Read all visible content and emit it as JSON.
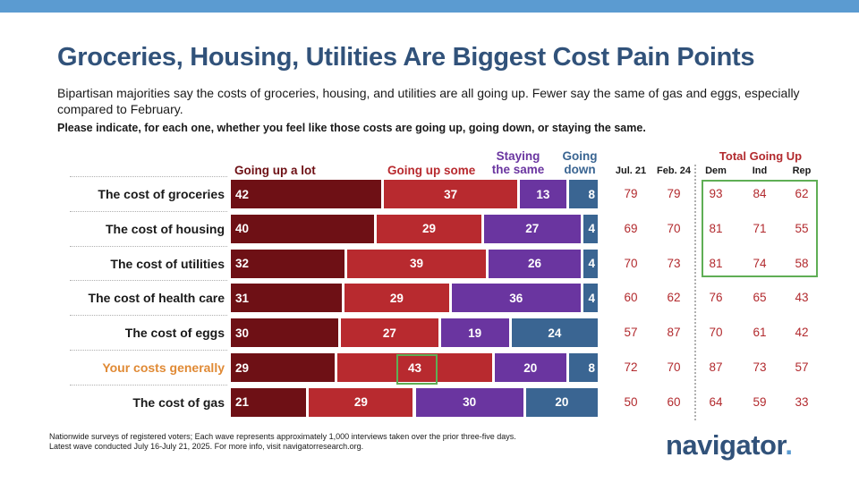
{
  "title": "Groceries, Housing, Utilities Are Biggest Cost Pain Points",
  "subtitle": "Bipartisan majorities say the costs of groceries, housing, and utilities are all going up. Fewer say the same of gas and eggs, especially compared to February.",
  "question": "Please indicate, for each one, whether you feel like those costs are going up, going down, or staying the same.",
  "headers": {
    "going_up_a_lot": "Going up a lot",
    "going_up_some": "Going up some",
    "staying_line1": "Staying",
    "staying_line2": "the same",
    "going_line1": "Going",
    "going_line2": "down",
    "total_going_up": "Total Going Up",
    "jul21": "Jul. 21",
    "feb24": "Feb. 24",
    "dem": "Dem",
    "ind": "Ind",
    "rep": "Rep"
  },
  "colors": {
    "going_up_a_lot": "#6e1015",
    "going_up_some": "#b82a2f",
    "staying_the_same": "#6a35a0",
    "going_down": "#3a6592",
    "highlight_label": "#e08a35",
    "title": "#31527a",
    "accent_bar": "#5b9bd1",
    "highlight_box": "#5fae55"
  },
  "chart_data": {
    "type": "bar",
    "orientation": "horizontal",
    "stacked": true,
    "title": "Groceries, Housing, Utilities Are Biggest Cost Pain Points",
    "categories": [
      "The cost of groceries",
      "The cost of housing",
      "The cost of utilities",
      "The cost of health care",
      "The cost of eggs",
      "Your costs generally",
      "The cost of gas"
    ],
    "highlighted_category": "Your costs generally",
    "series": [
      {
        "name": "Going up a lot",
        "values": [
          42,
          40,
          32,
          31,
          30,
          29,
          21
        ]
      },
      {
        "name": "Going up some",
        "values": [
          37,
          29,
          39,
          29,
          27,
          43,
          29
        ]
      },
      {
        "name": "Staying the same",
        "values": [
          13,
          27,
          26,
          36,
          19,
          20,
          30
        ]
      },
      {
        "name": "Going down",
        "values": [
          8,
          4,
          4,
          4,
          24,
          8,
          20
        ]
      }
    ],
    "total_going_up": {
      "columns": [
        "Jul. 21",
        "Feb. 24",
        "Dem",
        "Ind",
        "Rep"
      ],
      "rows": [
        [
          79,
          79,
          93,
          84,
          62
        ],
        [
          69,
          70,
          81,
          71,
          55
        ],
        [
          70,
          73,
          81,
          74,
          58
        ],
        [
          60,
          62,
          76,
          65,
          43
        ],
        [
          57,
          87,
          70,
          61,
          42
        ],
        [
          72,
          70,
          87,
          73,
          57
        ],
        [
          50,
          60,
          64,
          59,
          33
        ]
      ]
    }
  },
  "footnote": {
    "line1": "Nationwide surveys of registered voters; Each wave represents approximately 1,000 interviews taken over the prior three-five days.",
    "line2": "Latest wave conducted July 16-July 21, 2025. For more info, visit navigatorresearch.org."
  },
  "logo": {
    "text": "navigator",
    "dot": "."
  }
}
